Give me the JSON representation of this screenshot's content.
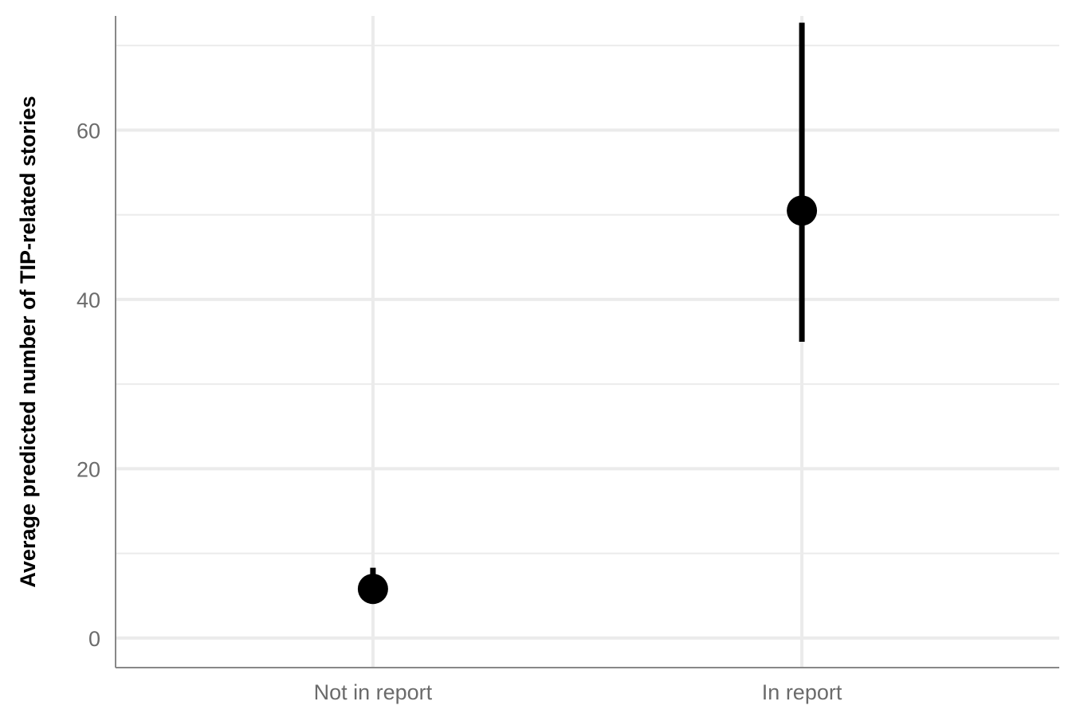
{
  "chart_data": {
    "type": "scatter",
    "categories": [
      "Not in report",
      "In report"
    ],
    "series": [
      {
        "values": [
          5.8,
          50.5
        ],
        "lower": [
          5.8,
          35.0
        ],
        "upper": [
          8.3,
          72.7
        ]
      }
    ],
    "xlabel": "",
    "ylabel": "Average predicted number of TIP-related stories",
    "ylim": [
      -3.5,
      73.5
    ],
    "yticks": [
      0,
      20,
      40,
      60
    ],
    "grid": true,
    "legend": "none",
    "colors": {
      "point": "#000000",
      "grid": "#ebebeb",
      "axis": "#888888",
      "tick_text": "#6b6b6b"
    }
  }
}
